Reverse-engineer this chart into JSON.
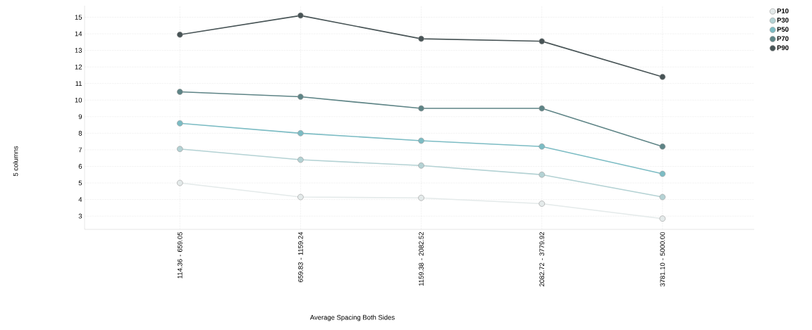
{
  "chart_data": {
    "type": "line",
    "xlabel": "Average Spacing Both Sides",
    "annotations": [
      "5 columns"
    ],
    "categories": [
      "114.36 - 659.05",
      "659.83 - 1159.24",
      "1159.38 - 2082.52",
      "2082.72 - 3779.92",
      "3781.10 - 5000.00"
    ],
    "series": [
      {
        "name": "P10",
        "color": "#e4eaea",
        "values": [
          5.0,
          4.15,
          4.1,
          3.75,
          2.85
        ]
      },
      {
        "name": "P30",
        "color": "#b4d2d4",
        "values": [
          7.05,
          6.4,
          6.05,
          5.5,
          4.15
        ]
      },
      {
        "name": "P50",
        "color": "#7cbcc4",
        "values": [
          8.6,
          8.0,
          7.55,
          7.2,
          5.55
        ]
      },
      {
        "name": "P70",
        "color": "#5e8486",
        "values": [
          10.5,
          10.2,
          9.5,
          9.5,
          7.2
        ]
      },
      {
        "name": "P90",
        "color": "#485456",
        "values": [
          13.95,
          15.1,
          13.7,
          13.55,
          11.4
        ]
      }
    ],
    "ylim": [
      2.2,
      15.7
    ],
    "yticks": [
      3,
      4,
      5,
      6,
      7,
      8,
      9,
      10,
      11,
      12,
      13,
      14,
      15
    ],
    "grid": true,
    "legend": "top right",
    "marker": "circle",
    "line_style": "solid"
  }
}
